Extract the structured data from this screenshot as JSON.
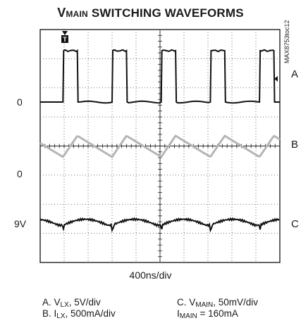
{
  "title": {
    "main_v": "V",
    "main_sub": "MAIN",
    "rest": " SWITCHING WAVEFORMS"
  },
  "scope_id": "MAX8753toc12",
  "chart_data": {
    "type": "line",
    "title": "VMAIN SWITCHING WAVEFORMS",
    "xlabel": "400ns/div",
    "grid": true,
    "x_divisions": 10,
    "y_divisions": 8,
    "trigger_marker": "T",
    "channels": [
      {
        "label": "A",
        "scale": "5V/div",
        "zero_label": "0",
        "color": "#111111",
        "description": "square-wave switching node voltage"
      },
      {
        "label": "B",
        "scale": "500mA/div",
        "zero_label": "0",
        "color": "#b5b5b5",
        "description": "triangular inductor current"
      },
      {
        "label": "C",
        "scale": "50mV/div",
        "zero_label": "9V",
        "color": "#111111",
        "description": "output ripple voltage"
      }
    ],
    "pulse_period_div": 2.05,
    "pulse_width_div": 0.6,
    "ripple_period_div": 2.05
  },
  "labels": {
    "ch_a_zero": "0",
    "ch_b_zero": "0",
    "ch_c_zero": "9V",
    "ch_a": "A",
    "ch_b": "B",
    "ch_c": "C",
    "xscale": "400ns/div",
    "trigger": "T"
  },
  "legend": {
    "a_prefix": "A. V",
    "a_sub": "LX",
    "a_suffix": ", 5V/div",
    "b_prefix": "B. I",
    "b_sub": "LX",
    "b_suffix": ", 500mA/div",
    "c_prefix": "C. V",
    "c_sub": "MAIN",
    "c_suffix": ", 50mV/div",
    "d_prefix": "I",
    "d_sub": "MAIN",
    "d_suffix": " = 160mA"
  }
}
